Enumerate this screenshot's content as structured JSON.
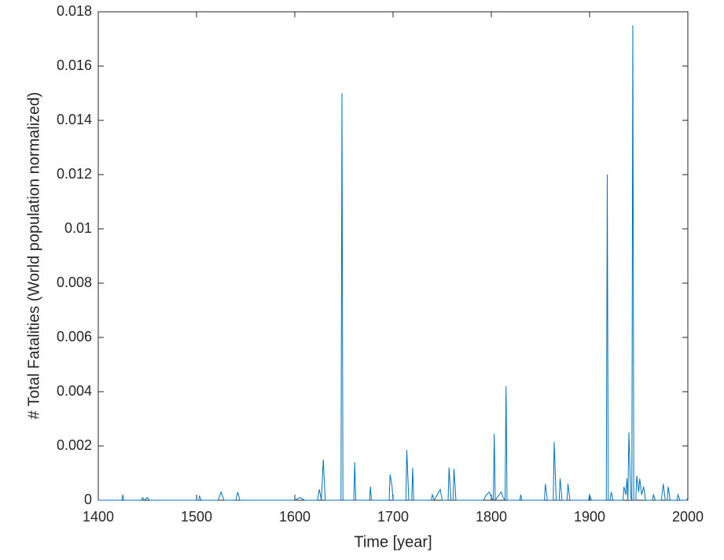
{
  "chart_data": {
    "type": "line",
    "xlabel": "Time [year]",
    "ylabel": "# Total Fatalities (World population normalized)",
    "x": [
      1400,
      1424,
      1425,
      1426,
      1444,
      1445,
      1447,
      1450,
      1452,
      1502,
      1503,
      1505,
      1522,
      1525,
      1528,
      1540,
      1542,
      1544,
      1600,
      1605,
      1610,
      1623,
      1625,
      1627,
      1629,
      1631,
      1647,
      1648,
      1649,
      1660,
      1661,
      1662,
      1676,
      1677,
      1678,
      1696,
      1697,
      1699,
      1700,
      1713,
      1714,
      1716,
      1719,
      1720,
      1721,
      1739,
      1740,
      1742,
      1748,
      1750,
      1756,
      1757,
      1759,
      1761,
      1762,
      1764,
      1792,
      1795,
      1798,
      1800,
      1802,
      1803,
      1804,
      1808,
      1810,
      1812,
      1814,
      1815,
      1816,
      1829,
      1830,
      1831,
      1854,
      1855,
      1857,
      1863,
      1864,
      1866,
      1869,
      1870,
      1872,
      1877,
      1878,
      1880,
      1899,
      1900,
      1902,
      1917,
      1918,
      1919,
      1921,
      1922,
      1924,
      1934,
      1935,
      1937,
      1938,
      1939,
      1940,
      1942,
      1943,
      1944,
      1945,
      1947,
      1948,
      1950,
      1951,
      1953,
      1955,
      1957,
      1964,
      1965,
      1967,
      1973,
      1975,
      1977,
      1979,
      1980,
      1982,
      1989,
      1990,
      1992,
      1999,
      2000
    ],
    "series": [
      {
        "name": "fatalities",
        "color": "#0072bd",
        "values": [
          0,
          0,
          0.0002,
          0,
          0,
          0.0001,
          0,
          0.0001,
          0,
          0,
          0.00015,
          0,
          0,
          0.0003,
          0,
          0,
          0.0003,
          0,
          0,
          0.0001,
          0,
          0,
          0.0004,
          0,
          0.0015,
          0,
          0,
          0.015,
          0,
          0,
          0.0014,
          0,
          0,
          0.0005,
          0,
          0,
          0.00095,
          0.0005,
          0,
          0,
          0.00185,
          0,
          0,
          0.0012,
          0,
          0,
          0.0002,
          0,
          0.0004,
          0,
          0,
          0.0012,
          0,
          0,
          0.00115,
          0,
          0,
          0.0002,
          0.0003,
          0.0001,
          0,
          0.00245,
          0,
          0.0002,
          0.0003,
          0.0001,
          0,
          0.0042,
          0,
          0,
          0.0002,
          0,
          0,
          0.0006,
          0,
          0,
          0.00215,
          0,
          0,
          0.0008,
          0,
          0,
          0.0006,
          0,
          0,
          0.0002,
          0,
          0,
          0.012,
          0,
          0,
          0.0003,
          0,
          0,
          0.0005,
          0.0002,
          0.0008,
          0,
          0.0025,
          0.0001,
          0,
          0.0175,
          0,
          0,
          0.0009,
          0.0003,
          0.0008,
          0.0002,
          0.0005,
          0,
          0,
          0.0002,
          0,
          0,
          0.0006,
          0,
          0,
          0.0005,
          0,
          0,
          0.0002,
          0,
          0,
          0.0001
        ]
      }
    ],
    "xlim": [
      1400,
      2000
    ],
    "xticks": [
      1400,
      1500,
      1600,
      1700,
      1800,
      1900,
      2000
    ],
    "ylim": [
      0,
      0.018
    ],
    "yticks": [
      0,
      0.002,
      0.004,
      0.006,
      0.008,
      0.01,
      0.012,
      0.014,
      0.016,
      0.018
    ]
  }
}
